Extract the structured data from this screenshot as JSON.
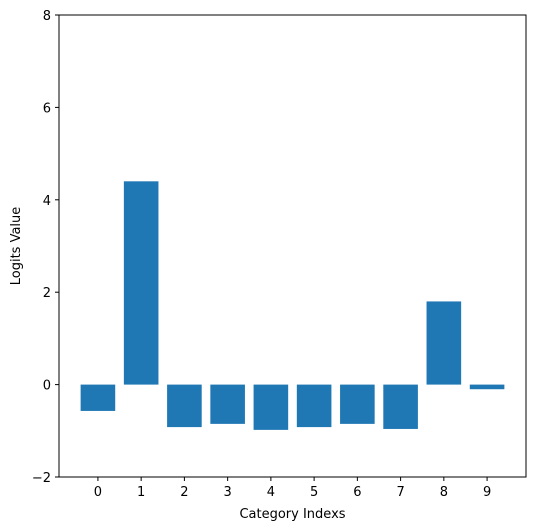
{
  "chart_data": {
    "type": "bar",
    "categories": [
      "0",
      "1",
      "2",
      "3",
      "4",
      "5",
      "6",
      "7",
      "8",
      "9"
    ],
    "values": [
      -0.57,
      4.4,
      -0.92,
      -0.85,
      -0.98,
      -0.92,
      -0.85,
      -0.96,
      1.8,
      -0.1
    ],
    "title": "",
    "xlabel": "Category Indexs",
    "ylabel": "Logits Value",
    "ylim": [
      -2,
      8
    ],
    "yticks": [
      -2,
      0,
      2,
      4,
      6,
      8
    ],
    "grid": false,
    "legend": "none",
    "bar_color": "#1f77b4"
  }
}
